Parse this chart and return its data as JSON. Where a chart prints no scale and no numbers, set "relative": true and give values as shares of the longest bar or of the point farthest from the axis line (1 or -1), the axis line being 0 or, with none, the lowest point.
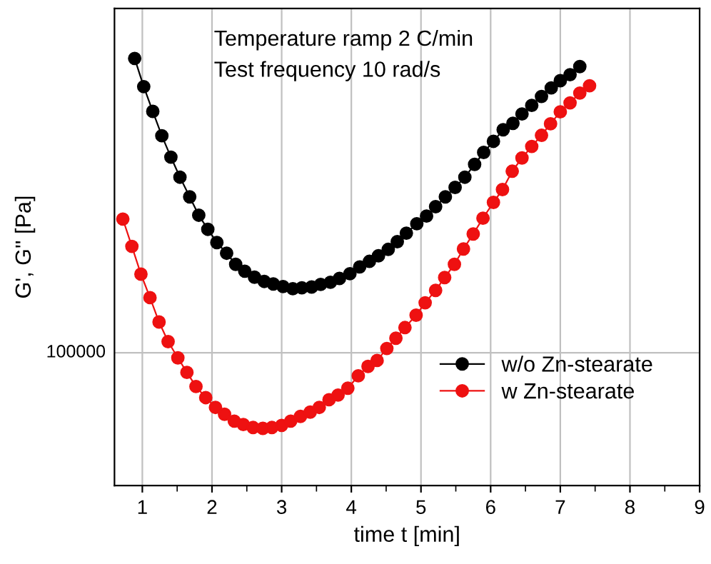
{
  "chart_data": {
    "type": "line",
    "relative": true,
    "xlabel": "time t [min]",
    "ylabel": "G', G'' [Pa]",
    "annotations": [
      "Temperature ramp 2 C/min",
      "Test frequency 10 rad/s",
      "100000"
    ],
    "xlim": [
      0.6,
      9
    ],
    "xticks": [
      1,
      2,
      3,
      4,
      5,
      6,
      7,
      8,
      9
    ],
    "grid": "x",
    "legend": "bottom right",
    "marker": "circle",
    "line_style": "solid",
    "ref_lines": [
      {
        "axis": "y",
        "value": 0.311,
        "color": "#c0c0c0"
      }
    ],
    "series": [
      {
        "name": "w/o Zn-stearate",
        "color": "#000000",
        "x": [
          0.89,
          1.02,
          1.15,
          1.28,
          1.41,
          1.54,
          1.68,
          1.81,
          1.94,
          2.07,
          2.21,
          2.34,
          2.47,
          2.61,
          2.75,
          2.88,
          3.02,
          3.16,
          3.29,
          3.43,
          3.56,
          3.7,
          3.83,
          3.98,
          4.12,
          4.26,
          4.39,
          4.53,
          4.66,
          4.79,
          4.94,
          5.08,
          5.21,
          5.35,
          5.49,
          5.63,
          5.77,
          5.9,
          6.04,
          6.18,
          6.32,
          6.45,
          6.59,
          6.73,
          6.87,
          7.0,
          7.14,
          7.28
        ],
        "values": [
          1.0,
          0.934,
          0.876,
          0.819,
          0.769,
          0.722,
          0.676,
          0.633,
          0.6,
          0.569,
          0.544,
          0.518,
          0.502,
          0.488,
          0.478,
          0.472,
          0.466,
          0.461,
          0.463,
          0.465,
          0.471,
          0.476,
          0.485,
          0.496,
          0.512,
          0.525,
          0.538,
          0.553,
          0.571,
          0.591,
          0.613,
          0.631,
          0.653,
          0.676,
          0.698,
          0.722,
          0.752,
          0.78,
          0.806,
          0.833,
          0.848,
          0.87,
          0.89,
          0.911,
          0.931,
          0.948,
          0.962,
          0.981
        ]
      },
      {
        "name": "w Zn-stearate",
        "color": "#ee1111",
        "x": [
          0.72,
          0.85,
          0.98,
          1.11,
          1.24,
          1.37,
          1.51,
          1.64,
          1.77,
          1.91,
          2.05,
          2.18,
          2.32,
          2.45,
          2.59,
          2.73,
          2.86,
          3.0,
          3.13,
          3.27,
          3.41,
          3.54,
          3.68,
          3.81,
          3.95,
          4.1,
          4.24,
          4.37,
          4.51,
          4.64,
          4.77,
          4.93,
          5.06,
          5.21,
          5.34,
          5.48,
          5.61,
          5.75,
          5.89,
          6.04,
          6.17,
          6.31,
          6.45,
          6.59,
          6.73,
          6.86,
          7.0,
          7.14,
          7.28,
          7.42
        ],
        "values": [
          0.624,
          0.56,
          0.495,
          0.44,
          0.383,
          0.337,
          0.299,
          0.265,
          0.232,
          0.206,
          0.183,
          0.167,
          0.151,
          0.143,
          0.136,
          0.134,
          0.136,
          0.141,
          0.151,
          0.162,
          0.172,
          0.183,
          0.201,
          0.212,
          0.228,
          0.257,
          0.279,
          0.293,
          0.321,
          0.345,
          0.37,
          0.399,
          0.428,
          0.457,
          0.487,
          0.518,
          0.554,
          0.589,
          0.626,
          0.663,
          0.693,
          0.736,
          0.767,
          0.794,
          0.82,
          0.847,
          0.875,
          0.896,
          0.919,
          0.936
        ]
      }
    ]
  }
}
